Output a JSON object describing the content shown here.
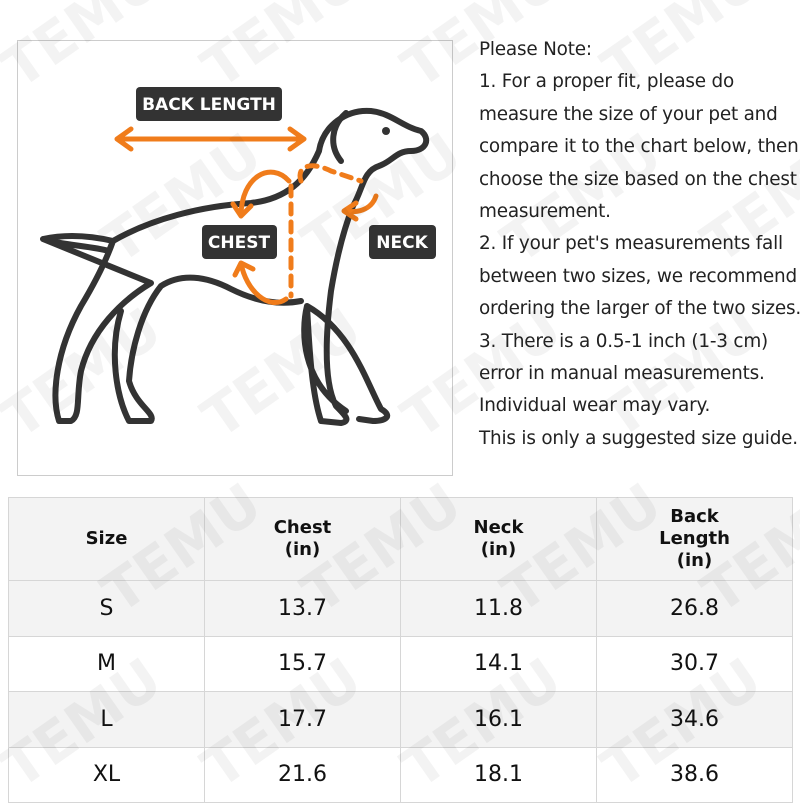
{
  "watermark": "TEMU",
  "diagram": {
    "labels": {
      "back_length": "BACK LENGTH",
      "chest": "CHEST",
      "neck": "NECK"
    }
  },
  "notes": {
    "title": "Please Note:",
    "items": [
      "1. For a proper fit, please do measure the size of your pet and compare it to the chart below, then choose the size based on the chest measurement.",
      "2. If your pet's measurements fall between two sizes, we recommend ordering the larger of the two sizes.",
      "3. There is a 0.5-1 inch (1-3 cm) error in manual measurements. Individual wear may vary.",
      "This is only a suggested size guide."
    ]
  },
  "table": {
    "headers": [
      "Size",
      "Chest\n(in)",
      "Neck\n(in)",
      "Back\nLength\n(in)"
    ],
    "rows": [
      [
        "S",
        "13.7",
        "11.8",
        "26.8"
      ],
      [
        "M",
        "15.7",
        "14.1",
        "30.7"
      ],
      [
        "L",
        "17.7",
        "16.1",
        "34.6"
      ],
      [
        "XL",
        "21.6",
        "18.1",
        "38.6"
      ]
    ]
  }
}
